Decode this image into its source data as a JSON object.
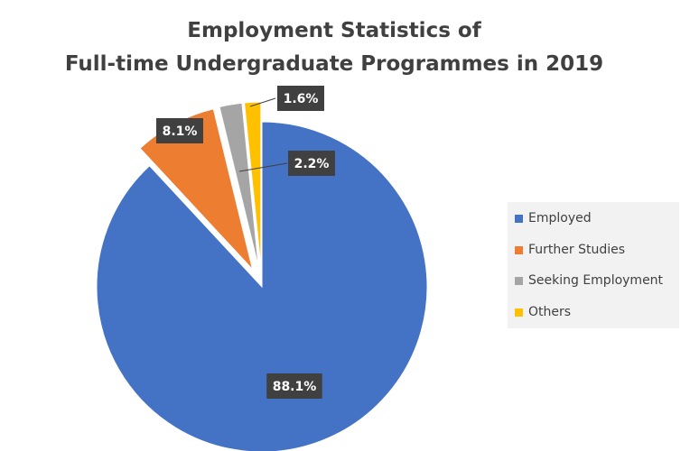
{
  "chart_data": {
    "type": "pie",
    "title_lines": [
      "Employment Statistics of",
      "Full-time Undergraduate Programmes in 2019"
    ],
    "slices": [
      {
        "name": "Employed",
        "value": 88.1,
        "label": "88.1%",
        "color": "#4472c4",
        "exploded": false
      },
      {
        "name": "Further Studies",
        "value": 8.1,
        "label": "8.1%",
        "color": "#ed7d31",
        "exploded": true
      },
      {
        "name": "Seeking Employment",
        "value": 2.2,
        "label": "2.2%",
        "color": "#a5a5a5",
        "exploded": true
      },
      {
        "name": "Others",
        "value": 1.6,
        "label": "1.6%",
        "color": "#ffc000",
        "exploded": true
      }
    ],
    "label_box_color": "#404040",
    "legend_position": "right"
  }
}
